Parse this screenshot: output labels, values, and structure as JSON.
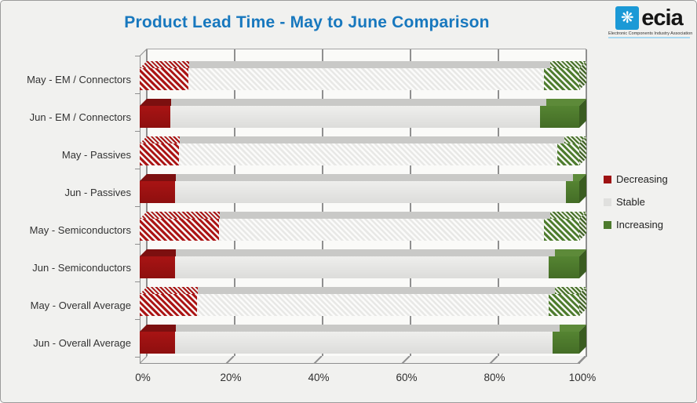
{
  "logo": {
    "name": "ecia",
    "tagline": "Electronic Components Industry Association",
    "icon": "asterisk-dots-icon",
    "brand_blue": "#1b99d6"
  },
  "chart_data": {
    "type": "bar",
    "orientation": "horizontal",
    "stacked": true,
    "title": "Product Lead Time - May to June Comparison",
    "categories": [
      "May - EM / Connectors",
      "Jun - EM / Connectors",
      "May - Passives",
      "Jun - Passives",
      "May - Semiconductors",
      "Jun - Semiconductors",
      "May - Overall Average",
      "Jun - Overall Average"
    ],
    "series": [
      {
        "name": "Decreasing",
        "color": "#9e1212",
        "values": [
          11,
          7,
          9,
          8,
          18,
          8,
          13,
          8
        ]
      },
      {
        "name": "Stable",
        "color": "#e0e0de",
        "values": [
          81,
          84,
          86,
          89,
          74,
          85,
          80,
          86
        ]
      },
      {
        "name": "Increasing",
        "color": "#4d7a2d",
        "values": [
          8,
          9,
          5,
          3,
          8,
          7,
          7,
          6
        ]
      }
    ],
    "hatched_categories": [
      0,
      2,
      4,
      6
    ],
    "xticks": [
      "0%",
      "20%",
      "40%",
      "60%",
      "80%",
      "100%"
    ],
    "xlim": [
      0,
      100
    ],
    "grid": true,
    "legend_position": "right",
    "colors": {
      "title": "#1878be",
      "gridline": "#8f8f8f",
      "plot_bg": "#fafaf8",
      "page_bg": "#f1f1ef"
    }
  }
}
